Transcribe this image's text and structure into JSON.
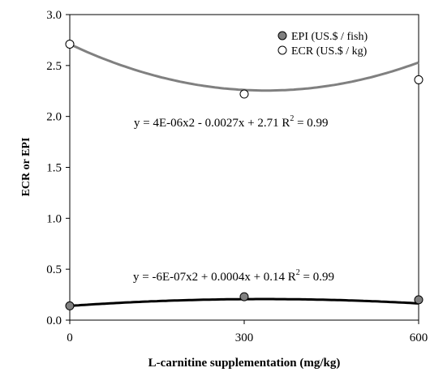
{
  "chart_data": {
    "type": "scatter",
    "xlabel": "L-carnitine supplementation (mg/kg)",
    "ylabel": "ECR or EPI",
    "xlim": [
      0,
      600
    ],
    "ylim": [
      0,
      3.0
    ],
    "x_ticks": [
      "0",
      "300",
      "600"
    ],
    "y_ticks": [
      "0.0",
      "0.5",
      "1.0",
      "1.5",
      "2.0",
      "2.5",
      "3.0"
    ],
    "grid": false,
    "legend_position": "top-right",
    "series": [
      {
        "name": "EPI (US.$ / fish)",
        "marker": "filled-circle",
        "color": "#808080",
        "line_color": "#000000",
        "x": [
          0,
          300,
          600
        ],
        "y": [
          0.14,
          0.23,
          0.2
        ],
        "trend": {
          "a": -6e-07,
          "b": 0.0004,
          "c": 0.14
        },
        "equation": "y = -6E-07x2 + 0.0004x + 0.14 R",
        "r2": "2",
        "r2_value": " = 0.99"
      },
      {
        "name": "ECR (US.$ / kg)",
        "marker": "open-circle",
        "color": "#ffffff",
        "line_color": "#808080",
        "x": [
          0,
          300,
          600
        ],
        "y": [
          2.71,
          2.22,
          2.36
        ],
        "trend": {
          "a": 4e-06,
          "b": -0.0027,
          "c": 2.71
        },
        "equation": "y = 4E-06x2 - 0.0027x + 2.71 R",
        "r2": "2",
        "r2_value": " = 0.99"
      }
    ]
  }
}
